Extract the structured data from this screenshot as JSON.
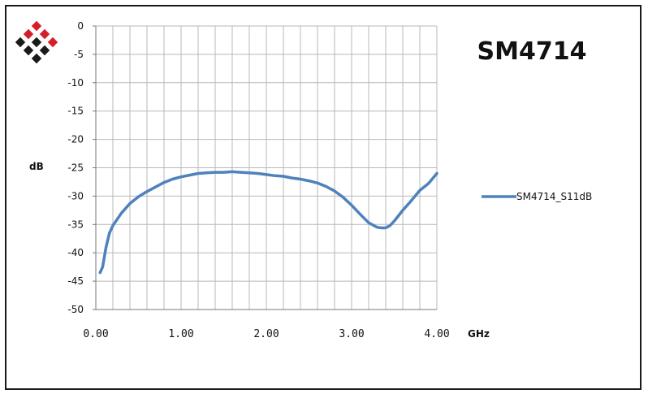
{
  "colors": {
    "series": "#4f81bd",
    "grid": "#b8b8b8",
    "logo_red": "#d51e29",
    "logo_black": "#1a1a1a"
  },
  "logo": {
    "icon": "diamond-grid-logo"
  },
  "chart_data": {
    "type": "line",
    "title": "SM4714",
    "xlabel": "GHz",
    "ylabel": "dB",
    "xlim": [
      0,
      4
    ],
    "ylim": [
      -50,
      0
    ],
    "grid": true,
    "legend_position": "right",
    "xticks": [
      "0.00",
      "1.00",
      "2.00",
      "3.00",
      "4.00"
    ],
    "yticks": [
      "0",
      "-5",
      "-10",
      "-15",
      "-20",
      "-25",
      "-30",
      "-35",
      "-40",
      "-45",
      "-50"
    ],
    "series": [
      {
        "name": "SM4714_S11dB",
        "x": [
          0.05,
          0.08,
          0.12,
          0.16,
          0.2,
          0.3,
          0.4,
          0.5,
          0.6,
          0.7,
          0.8,
          0.9,
          1.0,
          1.1,
          1.2,
          1.3,
          1.4,
          1.5,
          1.6,
          1.7,
          1.8,
          1.9,
          2.0,
          2.1,
          2.2,
          2.3,
          2.4,
          2.5,
          2.6,
          2.7,
          2.8,
          2.9,
          3.0,
          3.1,
          3.2,
          3.3,
          3.35,
          3.4,
          3.45,
          3.5,
          3.6,
          3.7,
          3.8,
          3.9,
          4.0
        ],
        "y": [
          -43.5,
          -42.5,
          -39.0,
          -36.5,
          -35.2,
          -33.0,
          -31.3,
          -30.1,
          -29.2,
          -28.4,
          -27.6,
          -27.0,
          -26.6,
          -26.3,
          -26.0,
          -25.9,
          -25.8,
          -25.8,
          -25.7,
          -25.8,
          -25.9,
          -26.0,
          -26.2,
          -26.4,
          -26.5,
          -26.8,
          -27.0,
          -27.3,
          -27.7,
          -28.3,
          -29.1,
          -30.2,
          -31.6,
          -33.2,
          -34.7,
          -35.5,
          -35.6,
          -35.6,
          -35.2,
          -34.4,
          -32.5,
          -30.8,
          -29.0,
          -27.8,
          -26.0
        ]
      }
    ]
  }
}
